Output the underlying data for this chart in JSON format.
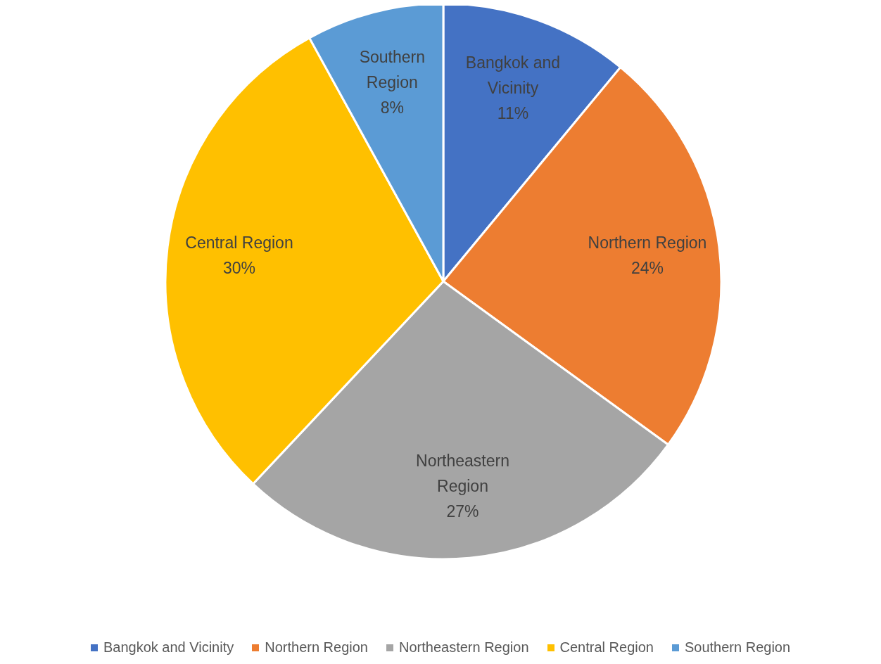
{
  "chart_data": {
    "type": "pie",
    "categories": [
      "Bangkok and Vicinity",
      "Northern Region",
      "Northeastern Region",
      "Central Region",
      "Southern Region"
    ],
    "values": [
      11,
      24,
      27,
      30,
      8
    ],
    "colors": [
      "#4472c4",
      "#ed7d31",
      "#a5a5a5",
      "#ffc000",
      "#5b9bd5"
    ],
    "value_labels": [
      "11%",
      "24%",
      "27%",
      "30%",
      "8%"
    ],
    "legend": "bottom"
  }
}
